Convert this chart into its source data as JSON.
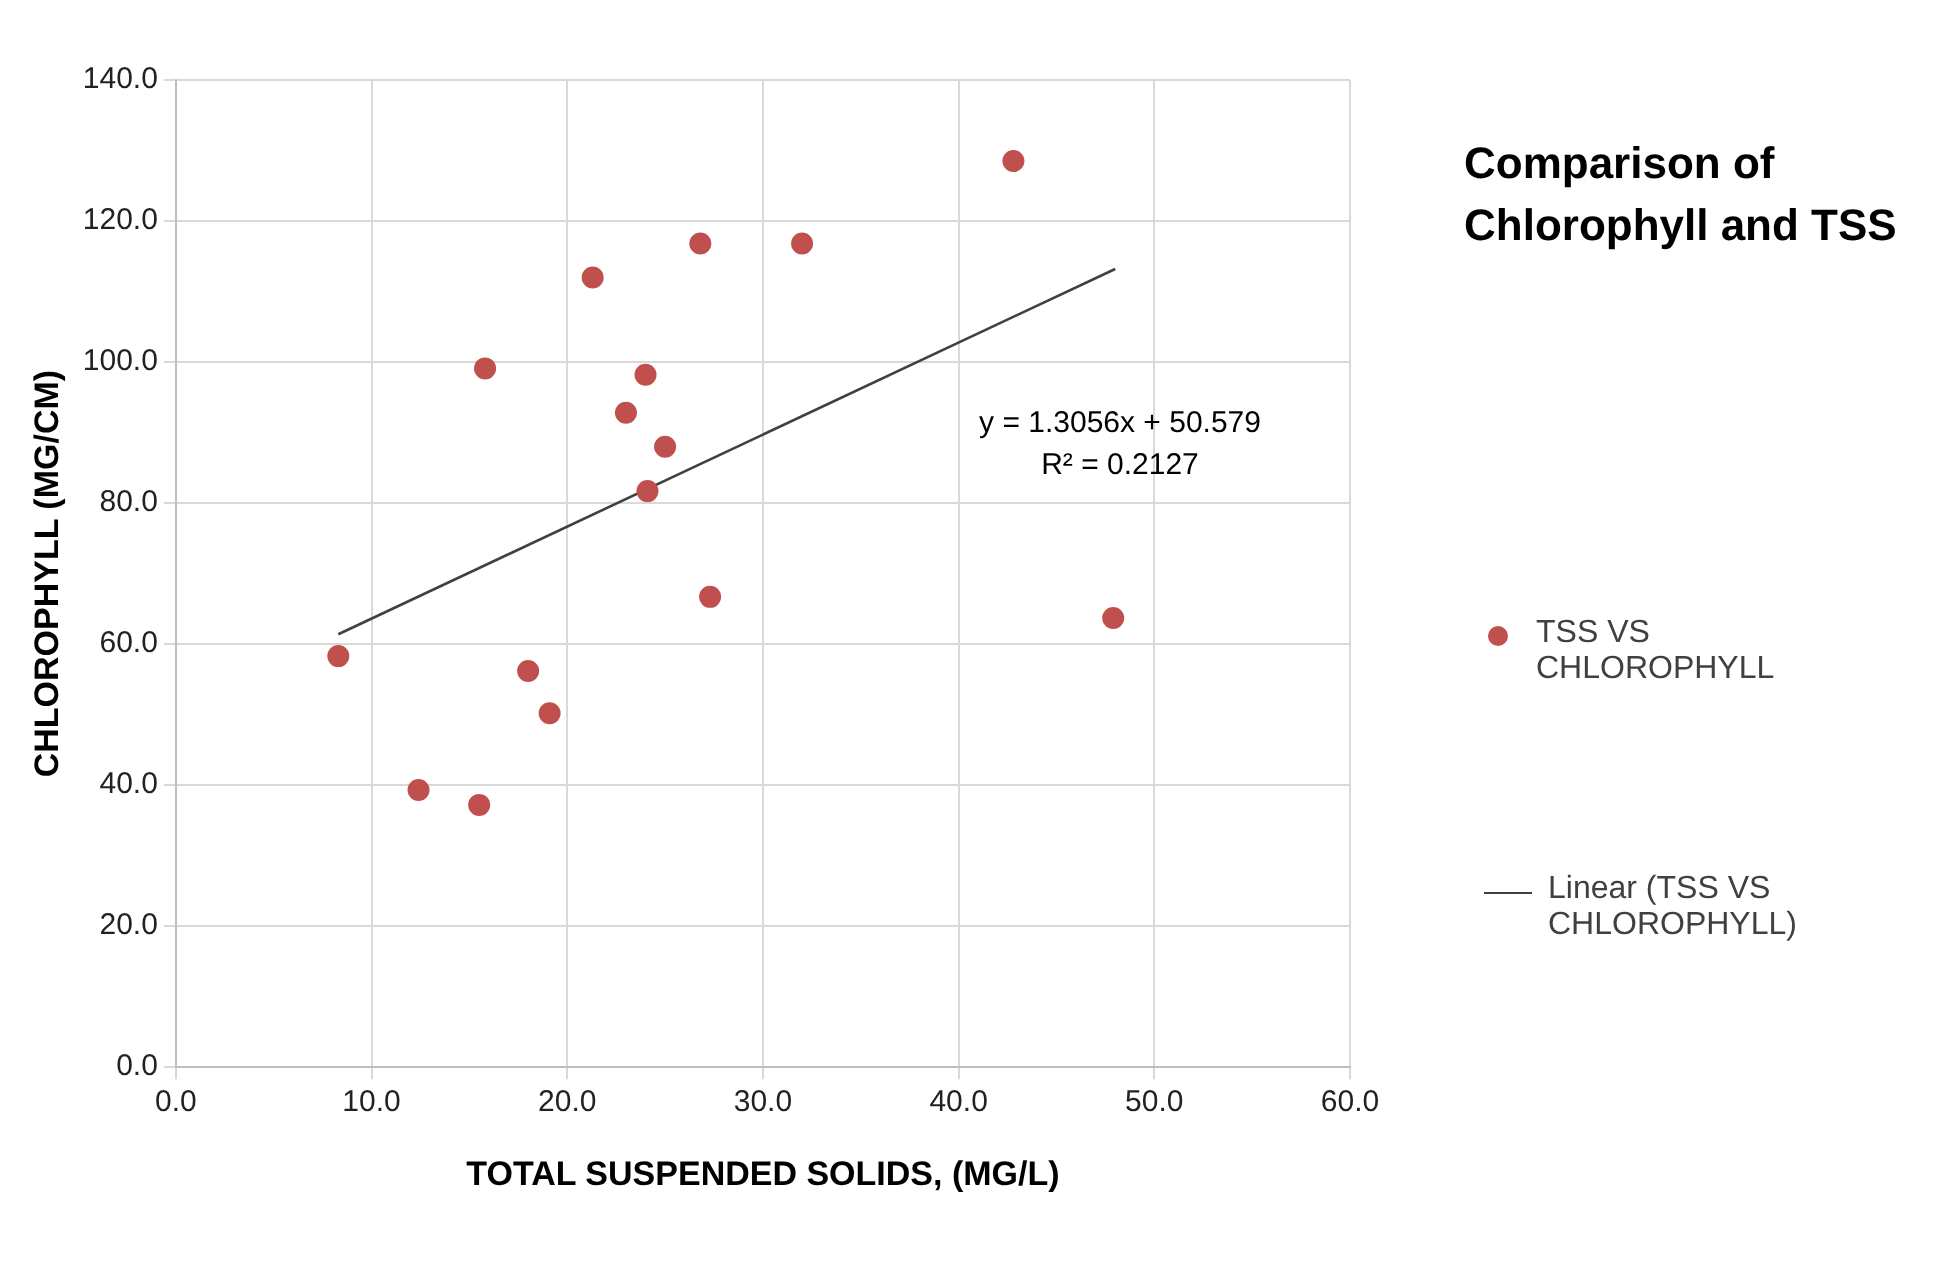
{
  "chart_data": {
    "type": "scatter",
    "title": "Comparison of Chlorophyll and TSS",
    "xlabel": "TOTAL SUSPENDED SOLIDS, (MG/L)",
    "ylabel": "CHLOROPHYLL (MG/CM)",
    "series": [
      {
        "name": "TSS VS CHLOROPHYLL",
        "color": "#c0504d",
        "marker": "circle",
        "x": [
          8.3,
          12.4,
          15.5,
          15.8,
          18.0,
          19.1,
          21.3,
          23.0,
          24.0,
          24.1,
          25.0,
          26.8,
          27.3,
          32.0,
          42.8,
          47.9
        ],
        "values": [
          58.3,
          39.3,
          37.2,
          99.1,
          56.2,
          50.2,
          112.0,
          92.8,
          98.2,
          81.7,
          88.0,
          116.8,
          66.7,
          116.8,
          128.5,
          63.7
        ]
      },
      {
        "name": "Linear (TSS VS CHLOROPHYLL)",
        "type": "line",
        "color": "#404040",
        "marker": "none",
        "line_style": "solid",
        "x": [
          8.3,
          48.0
        ],
        "values": [
          61.4,
          113.2
        ]
      }
    ],
    "annotations": [
      "y = 1.3056x + 50.579",
      "R² = 0.2127"
    ],
    "xlim": [
      0,
      60
    ],
    "xticks": [
      {
        "value": 0,
        "label": "0.0"
      },
      {
        "value": 10,
        "label": "10.0"
      },
      {
        "value": 20,
        "label": "20.0"
      },
      {
        "value": 30,
        "label": "30.0"
      },
      {
        "value": 40,
        "label": "40.0"
      },
      {
        "value": 50,
        "label": "50.0"
      },
      {
        "value": 60,
        "label": "60.0"
      }
    ],
    "ylim": [
      0,
      140
    ],
    "yticks": [
      {
        "value": 0,
        "label": "0.0"
      },
      {
        "value": 20,
        "label": "20.0"
      },
      {
        "value": 40,
        "label": "40.0"
      },
      {
        "value": 60,
        "label": "60.0"
      },
      {
        "value": 80,
        "label": "80.0"
      },
      {
        "value": 100,
        "label": "100.0"
      },
      {
        "value": 120,
        "label": "120.0"
      },
      {
        "value": 140,
        "label": "140.0"
      }
    ],
    "grid": true,
    "legend": "right"
  }
}
